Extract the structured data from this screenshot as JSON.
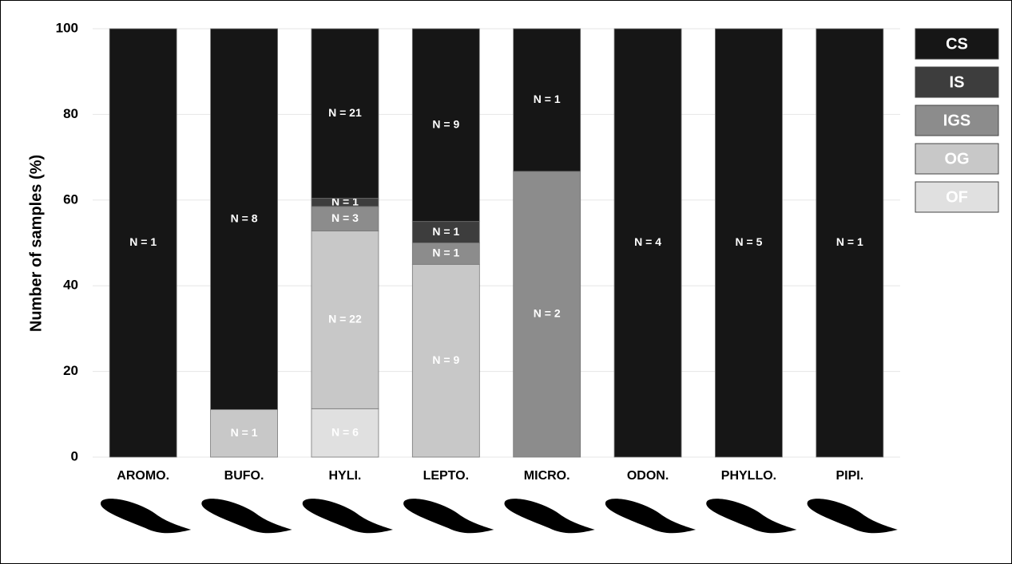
{
  "chart_data": {
    "type": "stacked_bar",
    "ylabel": "Number of samples (%)",
    "categories": [
      "AROMO.",
      "BUFO.",
      "HYLI.",
      "LEPTO.",
      "MICRO.",
      "ODON.",
      "PHYLLO.",
      "PIPI."
    ],
    "series": [
      {
        "name": "OF",
        "color": "#e0e0e0",
        "text_color": "#ffffff",
        "values": [
          0,
          0,
          11.3,
          0,
          0,
          0,
          0,
          0
        ],
        "labels": [
          null,
          null,
          "N = 6",
          null,
          null,
          null,
          null,
          null
        ]
      },
      {
        "name": "OG",
        "color": "#c8c8c8",
        "text_color": "#ffffff",
        "values": [
          0,
          11.1,
          41.5,
          45,
          0,
          0,
          0,
          0
        ],
        "labels": [
          null,
          "N = 1",
          "N = 22",
          "N = 9",
          null,
          null,
          null,
          null
        ]
      },
      {
        "name": "IGS",
        "color": "#8c8c8c",
        "text_color": "#ffffff",
        "values": [
          0,
          0,
          5.7,
          5,
          66.7,
          0,
          0,
          0
        ],
        "labels": [
          null,
          null,
          "N = 3",
          "N = 1",
          "N = 2",
          null,
          null,
          null
        ]
      },
      {
        "name": "IS",
        "color": "#3d3d3d",
        "text_color": "#ffffff",
        "values": [
          0,
          0,
          1.9,
          5,
          0,
          0,
          0,
          0
        ],
        "labels": [
          null,
          null,
          "N = 1",
          "N = 1",
          null,
          null,
          null,
          null
        ]
      },
      {
        "name": "CS",
        "color": "#161616",
        "text_color": "#ffffff",
        "values": [
          100,
          88.9,
          39.6,
          45,
          33.3,
          100,
          100,
          100
        ],
        "labels": [
          "N = 1",
          "N = 8",
          "N = 21",
          "N = 9",
          "N = 1",
          "N = 4",
          "N = 5",
          "N = 1"
        ]
      }
    ],
    "ylim": [
      0,
      100
    ],
    "yticks": [
      0,
      20,
      40,
      60,
      80,
      100
    ],
    "grid": true,
    "legend": "right"
  }
}
